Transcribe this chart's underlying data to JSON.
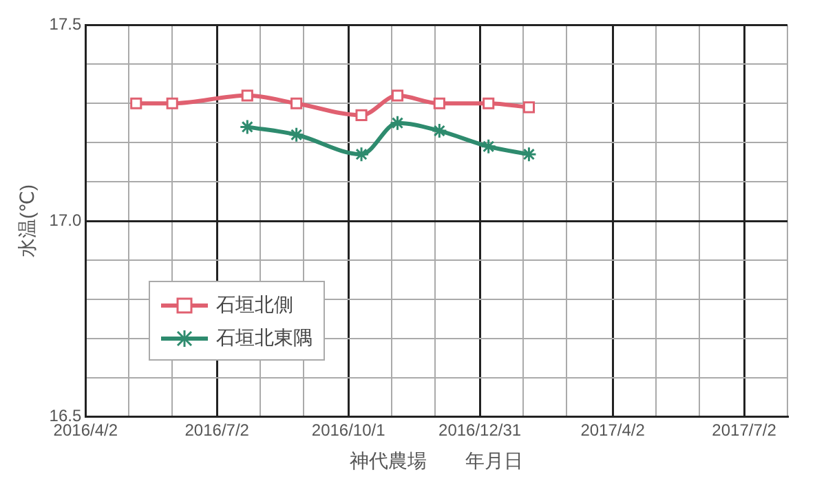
{
  "chart_data": {
    "type": "line",
    "xlabel": "神代農場　　年月日",
    "ylabel": "水温(℃)",
    "xlim": [
      "2016-04-02",
      "2017-08-01"
    ],
    "xticks": [
      {
        "value": "2016-04-02",
        "label": "2016/4/2"
      },
      {
        "value": "2016-05-02",
        "label": null
      },
      {
        "value": "2016-06-01",
        "label": null
      },
      {
        "value": "2016-07-02",
        "label": "2016/7/2"
      },
      {
        "value": "2016-08-01",
        "label": null
      },
      {
        "value": "2016-08-31",
        "label": null
      },
      {
        "value": "2016-10-01",
        "label": "2016/10/1"
      },
      {
        "value": "2016-10-31",
        "label": null
      },
      {
        "value": "2016-11-30",
        "label": null
      },
      {
        "value": "2016-12-31",
        "label": "2016/12/31"
      },
      {
        "value": "2017-01-30",
        "label": null
      },
      {
        "value": "2017-03-01",
        "label": null
      },
      {
        "value": "2017-04-02",
        "label": "2017/4/2"
      },
      {
        "value": "2017-05-02",
        "label": null
      },
      {
        "value": "2017-06-01",
        "label": null
      },
      {
        "value": "2017-07-02",
        "label": "2017/7/2"
      },
      {
        "value": "2017-08-01",
        "label": null
      }
    ],
    "ylim": [
      16.5,
      17.5
    ],
    "yticks": [
      16.5,
      {
        "value": 16.6,
        "label": null
      },
      {
        "value": 16.7,
        "label": null
      },
      {
        "value": 16.8,
        "label": null
      },
      {
        "value": 16.9,
        "label": null
      },
      {
        "value": 17.0,
        "label": "17.0"
      },
      {
        "value": 17.1,
        "label": null
      },
      {
        "value": 17.2,
        "label": null
      },
      {
        "value": 17.3,
        "label": null
      },
      {
        "value": 17.4,
        "label": null
      },
      17.5
    ],
    "grid": true,
    "legend": "bottom left",
    "series": [
      {
        "name": "石垣北側",
        "color": "#e06070",
        "marker": "square",
        "x": [
          "2016-05-07",
          "2016-06-01",
          "2016-07-23",
          "2016-08-26",
          "2016-10-10",
          "2016-11-04",
          "2016-12-03",
          "2017-01-06",
          "2017-02-03"
        ],
        "values": [
          17.3,
          17.3,
          17.32,
          17.3,
          17.27,
          17.32,
          17.3,
          17.3,
          17.29
        ]
      },
      {
        "name": "石垣北東隅",
        "color": "#2e8b6e",
        "marker": "cross",
        "x": [
          "2016-07-23",
          "2016-08-26",
          "2016-10-10",
          "2016-11-04",
          "2016-12-03",
          "2017-01-06",
          "2017-02-03"
        ],
        "values": [
          17.24,
          17.22,
          17.17,
          17.25,
          17.23,
          17.19,
          17.17
        ]
      }
    ]
  }
}
